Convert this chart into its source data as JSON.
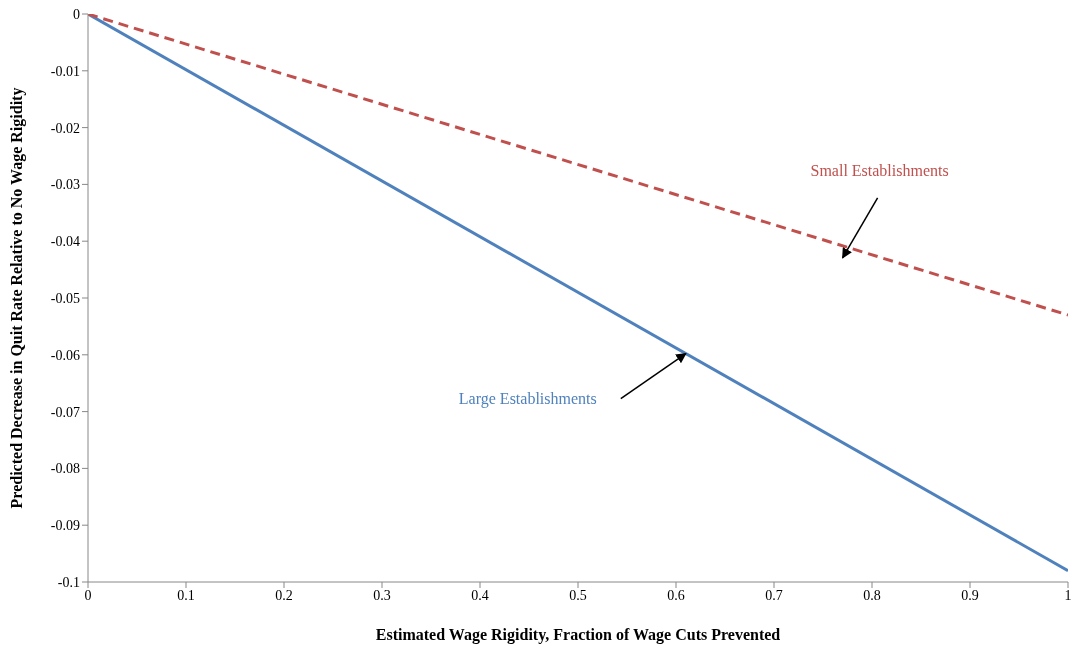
{
  "chart_data": {
    "type": "line",
    "xlabel": "Estimated Wage Rigidity,  Fraction of Wage Cuts Prevented",
    "ylabel": "Predicted Decrease in Quit Rate Relative to No Wage Rigidity",
    "x": [
      0,
      1
    ],
    "series": [
      {
        "name": "Large Establishments",
        "color": "#4f81bd",
        "values": [
          0,
          -0.098
        ],
        "line_style": "solid"
      },
      {
        "name": "Small Establishments",
        "color": "#c0504d",
        "values": [
          0,
          -0.053
        ],
        "line_style": "dashed"
      }
    ],
    "xlim": [
      0,
      1
    ],
    "xticks": [
      0,
      0.1,
      0.2,
      0.3,
      0.4,
      0.5,
      0.6,
      0.7,
      0.8,
      0.9,
      1
    ],
    "ylim": [
      -0.1,
      0
    ],
    "yticks": [
      0,
      -0.01,
      -0.02,
      -0.03,
      -0.04,
      -0.05,
      -0.06,
      -0.07,
      -0.08,
      -0.09,
      -0.1
    ],
    "grid": false,
    "legend": false,
    "marker": "none"
  }
}
